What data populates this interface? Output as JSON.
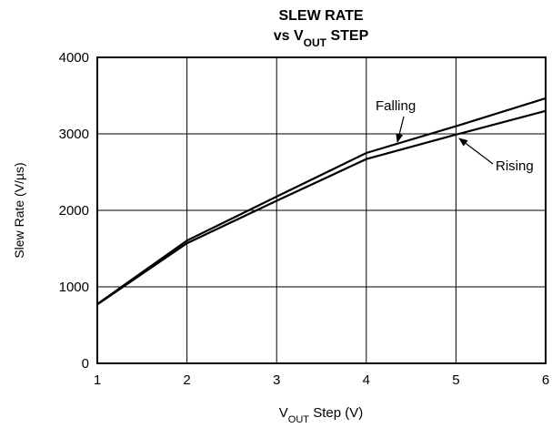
{
  "chart_data": {
    "type": "line",
    "title": "SLEW RATE",
    "subtitle": [
      "vs V",
      "OUT",
      " STEP"
    ],
    "x_label": [
      "V",
      "OUT",
      " Step (V)"
    ],
    "y_label": "Slew Rate (V/µs)",
    "x": [
      1,
      2,
      3,
      4,
      5,
      6
    ],
    "series": [
      {
        "name": "Falling",
        "color": "#000000",
        "values": [
          775,
          1605,
          2180,
          2750,
          3100,
          3465
        ]
      },
      {
        "name": "Rising",
        "color": "#000000",
        "values": [
          770,
          1570,
          2125,
          2670,
          2990,
          3300
        ]
      }
    ],
    "xlim": [
      1,
      6
    ],
    "xticks": [
      1,
      2,
      3,
      4,
      5,
      6
    ],
    "ylim": [
      0,
      4000
    ],
    "yticks": [
      0,
      1000,
      2000,
      3000,
      4000
    ],
    "grid": true
  }
}
